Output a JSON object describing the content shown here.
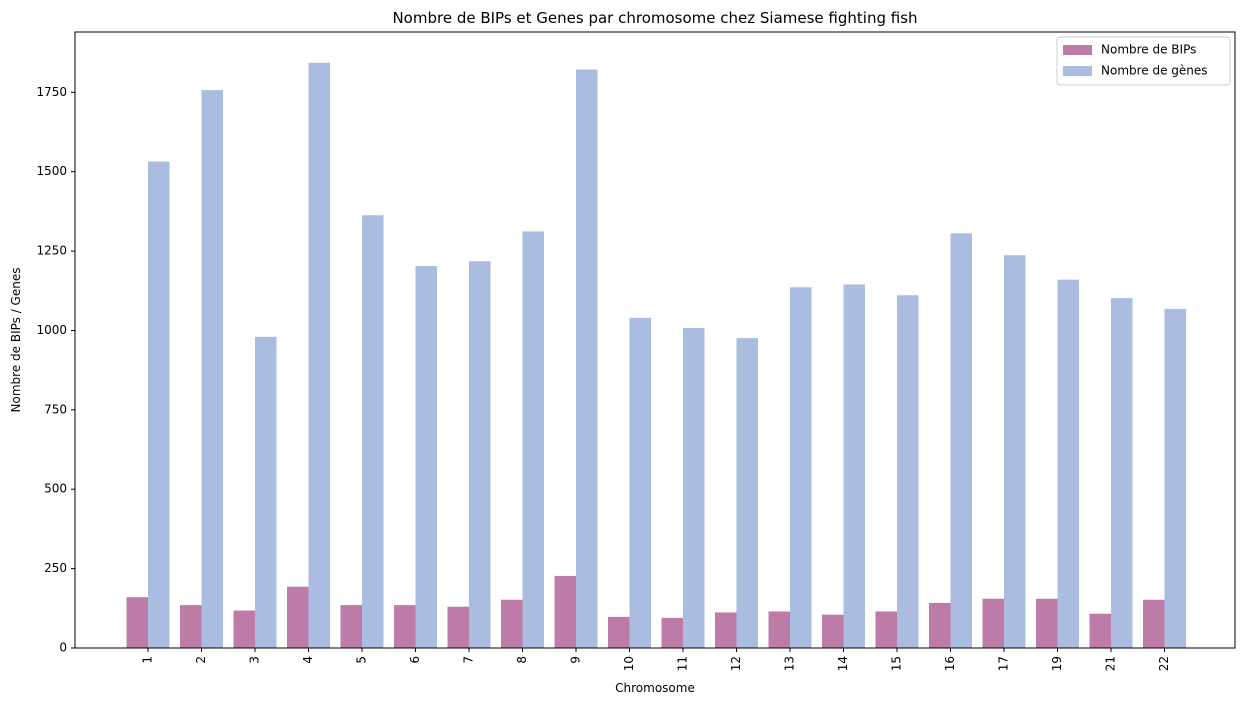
{
  "chart_data": {
    "type": "bar",
    "title": "Nombre de BIPs et Genes par chromosome chez Siamese fighting fish",
    "xlabel": "Chromosome",
    "ylabel": "Nombre de BIPs / Genes",
    "categories": [
      "1",
      "2",
      "3",
      "4",
      "5",
      "6",
      "7",
      "8",
      "9",
      "10",
      "11",
      "12",
      "13",
      "14",
      "15",
      "16",
      "17",
      "19",
      "21",
      "22"
    ],
    "ylim": [
      0,
      1940
    ],
    "yticks": [
      0,
      250,
      500,
      750,
      1000,
      1250,
      1500,
      1750
    ],
    "xtick_rotation": "vertical",
    "grid": false,
    "legend_placement": "top-right",
    "series": [
      {
        "name": "Nombre de BIPs",
        "color": "#bd7ca8",
        "values": [
          160,
          135,
          118,
          193,
          135,
          135,
          130,
          152,
          227,
          98,
          95,
          112,
          115,
          105,
          115,
          142,
          155,
          155,
          108,
          152
        ]
      },
      {
        "name": "Nombre de gènes",
        "color": "#aabde1",
        "values": [
          1532,
          1757,
          980,
          1843,
          1363,
          1203,
          1218,
          1312,
          1822,
          1040,
          1008,
          976,
          1136,
          1145,
          1111,
          1306,
          1237,
          1160,
          1102,
          1068
        ]
      }
    ]
  }
}
